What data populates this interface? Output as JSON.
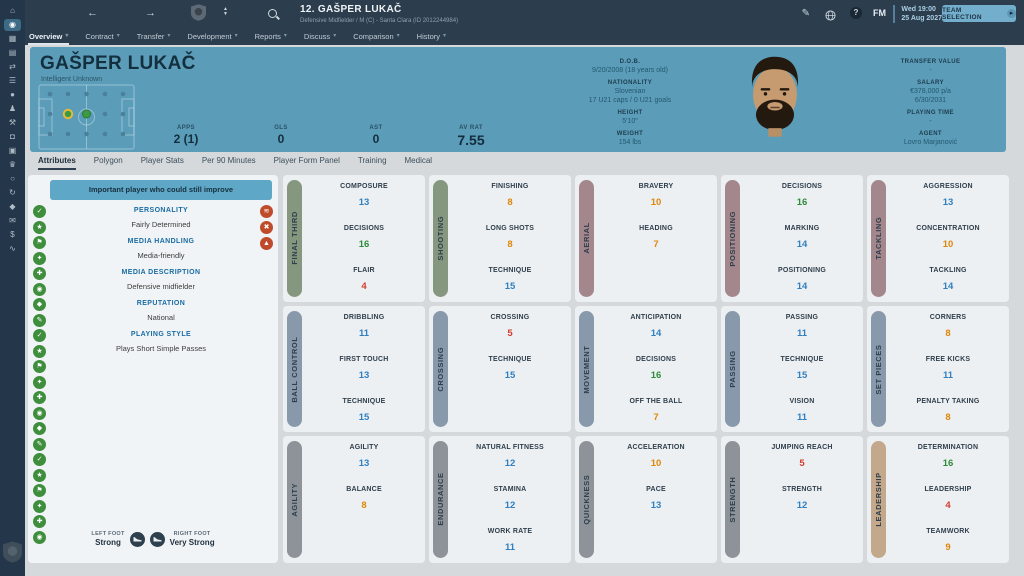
{
  "colors": {
    "topbar_bg": "#2c3d4e",
    "sidebar_bg": "#24374a",
    "header_bg": "#5b9cb9",
    "banner_bg": "#5fa7c6",
    "button_bg": "#74aecd",
    "page_bg": "#d5d9dc",
    "card_bg": "#edf0f2",
    "info_card_bg": "#f1f4f6"
  },
  "sidebar": {
    "icons": [
      {
        "name": "home",
        "glyph": "⌂"
      },
      {
        "name": "manager-profile",
        "glyph": "◉",
        "active": true
      },
      {
        "name": "squad",
        "glyph": "▦"
      },
      {
        "name": "tactics",
        "glyph": "▤"
      },
      {
        "name": "transfers",
        "glyph": "⇄"
      },
      {
        "name": "dynamics",
        "glyph": "☰"
      },
      {
        "name": "club-info",
        "glyph": "●"
      },
      {
        "name": "staff",
        "glyph": "♟"
      },
      {
        "name": "training",
        "glyph": "⚒"
      },
      {
        "name": "media",
        "glyph": "◘"
      },
      {
        "name": "schedule",
        "glyph": "▣"
      },
      {
        "name": "competitions",
        "glyph": "♛"
      },
      {
        "name": "search",
        "glyph": "○"
      },
      {
        "name": "history",
        "glyph": "↻"
      },
      {
        "name": "club-vision",
        "glyph": "◆"
      },
      {
        "name": "inbox",
        "glyph": "✉"
      },
      {
        "name": "finances",
        "glyph": "$"
      },
      {
        "name": "analytics",
        "glyph": "∿"
      }
    ]
  },
  "topbar": {
    "title": "12. GAŠPER LUKAČ",
    "subtitle": "Defensive Midfielder / M (C) - Santa Clara (ID 2012244984)",
    "fm_label": "FM",
    "help_label": "?",
    "clock_line1": "Wed 19:00",
    "clock_line2": "25 Aug 2027",
    "button_label": "TEAM SELECTION"
  },
  "menubar": {
    "items": [
      {
        "label": "Overview"
      },
      {
        "label": "Contract"
      },
      {
        "label": "Transfer"
      },
      {
        "label": "Development"
      },
      {
        "label": "Reports"
      },
      {
        "label": "Discuss"
      },
      {
        "label": "Comparison"
      },
      {
        "label": "History"
      }
    ]
  },
  "player_header": {
    "name": "GAŠPER LUKAČ",
    "traits": "Intelligent Unknown",
    "stats": [
      {
        "label": "APPS",
        "value": "2 (1)"
      },
      {
        "label": "GLS",
        "value": "0"
      },
      {
        "label": "AST",
        "value": "0"
      },
      {
        "label": "AV RAT",
        "value": "7.55"
      }
    ],
    "bio": {
      "dob_label": "D.O.B.",
      "dob": "9/20/2008 (18 years old)",
      "nat_label": "NATIONALITY",
      "nat1": "Slovenian",
      "nat2": "17 U21 caps / 0 U21 goals",
      "height_label": "HEIGHT",
      "height": "5'10\"",
      "weight_label": "WEIGHT",
      "weight": "154 lbs"
    },
    "contract": {
      "tv_label": "TRANSFER VALUE",
      "tv": "-",
      "salary_label": "SALARY",
      "salary": "€378,000 p/a",
      "salary_expiry": "6/30/2031",
      "pt_label": "PLAYING TIME",
      "pt": "-",
      "agent_label": "AGENT",
      "agent": "Lovro Marjanović"
    }
  },
  "view_tabs": {
    "items": [
      "Attributes",
      "Polygon",
      "Player Stats",
      "Per 90 Minutes",
      "Player Form Panel",
      "Training",
      "Medical"
    ],
    "active": "Attributes"
  },
  "info_panel": {
    "banner": "Important player who could still improve",
    "sections": [
      {
        "heading": "PERSONALITY",
        "value": "Fairly Determined"
      },
      {
        "heading": "MEDIA HANDLING",
        "value": "Media-friendly"
      },
      {
        "heading": "MEDIA DESCRIPTION",
        "value": "Defensive midfielder"
      },
      {
        "heading": "REPUTATION",
        "value": "National"
      },
      {
        "heading": "PLAYING STYLE",
        "value": "Plays Short Simple Passes"
      }
    ],
    "trait_icons": [
      "✓",
      "★",
      "⚑",
      "✦",
      "✚",
      "◉",
      "◆",
      "✎",
      "✓",
      "★",
      "⚑",
      "✦",
      "✚",
      "◉",
      "◆",
      "✎",
      "✓",
      "★",
      "⚑",
      "✦",
      "✚",
      "◉"
    ],
    "weakness_icons": [
      "≋",
      "✖",
      "▲"
    ]
  },
  "feet": {
    "left_label": "LEFT FOOT",
    "left_value": "Strong",
    "right_label": "RIGHT FOOT",
    "right_value": "Very Strong"
  },
  "attributes": {
    "palette": {
      "excellent": "#2e8b3a",
      "good": "#2f7fc1",
      "average": "#e0860a",
      "poor": "#d23b2e"
    },
    "pill_colors": {
      "green": "#85977f",
      "mauve": "#a3878c",
      "steel": "#8899ac",
      "gray": "#8d9399",
      "tan": "#c4a88c"
    },
    "groups": [
      {
        "label": "FINAL THIRD",
        "color": "green",
        "attrs": [
          {
            "name": "COMPOSURE",
            "value": 13
          },
          {
            "name": "DECISIONS",
            "value": 16
          },
          {
            "name": "FLAIR",
            "value": 4
          }
        ]
      },
      {
        "label": "SHOOTING",
        "color": "green",
        "attrs": [
          {
            "name": "FINISHING",
            "value": 8
          },
          {
            "name": "LONG SHOTS",
            "value": 8
          },
          {
            "name": "TECHNIQUE",
            "value": 15
          }
        ]
      },
      {
        "label": "AERIAL",
        "color": "mauve",
        "attrs": [
          {
            "name": "BRAVERY",
            "value": 10
          },
          {
            "name": "HEADING",
            "value": 7
          }
        ]
      },
      {
        "label": "POSITIONING",
        "color": "mauve",
        "attrs": [
          {
            "name": "DECISIONS",
            "value": 16
          },
          {
            "name": "MARKING",
            "value": 14
          },
          {
            "name": "POSITIONING",
            "value": 14
          }
        ]
      },
      {
        "label": "TACKLING",
        "color": "mauve",
        "attrs": [
          {
            "name": "AGGRESSION",
            "value": 13
          },
          {
            "name": "CONCENTRATION",
            "value": 10
          },
          {
            "name": "TACKLING",
            "value": 14
          }
        ]
      },
      {
        "label": "BALL CONTROL",
        "color": "steel",
        "attrs": [
          {
            "name": "DRIBBLING",
            "value": 11
          },
          {
            "name": "FIRST TOUCH",
            "value": 13
          },
          {
            "name": "TECHNIQUE",
            "value": 15
          }
        ]
      },
      {
        "label": "CROSSING",
        "color": "steel",
        "attrs": [
          {
            "name": "CROSSING",
            "value": 5
          },
          {
            "name": "TECHNIQUE",
            "value": 15
          }
        ]
      },
      {
        "label": "MOVEMENT",
        "color": "steel",
        "attrs": [
          {
            "name": "ANTICIPATION",
            "value": 14
          },
          {
            "name": "DECISIONS",
            "value": 16
          },
          {
            "name": "OFF THE BALL",
            "value": 7
          }
        ]
      },
      {
        "label": "PASSING",
        "color": "steel",
        "attrs": [
          {
            "name": "PASSING",
            "value": 11
          },
          {
            "name": "TECHNIQUE",
            "value": 15
          },
          {
            "name": "VISION",
            "value": 11
          }
        ]
      },
      {
        "label": "SET PIECES",
        "color": "steel",
        "attrs": [
          {
            "name": "CORNERS",
            "value": 8
          },
          {
            "name": "FREE KICKS",
            "value": 11
          },
          {
            "name": "PENALTY TAKING",
            "value": 8
          }
        ]
      },
      {
        "label": "AGILITY",
        "color": "gray",
        "attrs": [
          {
            "name": "AGILITY",
            "value": 13
          },
          {
            "name": "BALANCE",
            "value": 8
          }
        ]
      },
      {
        "label": "ENDURANCE",
        "color": "gray",
        "attrs": [
          {
            "name": "NATURAL FITNESS",
            "value": 12
          },
          {
            "name": "STAMINA",
            "value": 12
          },
          {
            "name": "WORK RATE",
            "value": 11
          }
        ]
      },
      {
        "label": "QUICKNESS",
        "color": "gray",
        "attrs": [
          {
            "name": "ACCELERATION",
            "value": 10
          },
          {
            "name": "PACE",
            "value": 13
          }
        ]
      },
      {
        "label": "STRENGTH",
        "color": "gray",
        "attrs": [
          {
            "name": "JUMPING REACH",
            "value": 5
          },
          {
            "name": "STRENGTH",
            "value": 12
          }
        ]
      },
      {
        "label": "LEADERSHIP",
        "color": "tan",
        "attrs": [
          {
            "name": "DETERMINATION",
            "value": 16
          },
          {
            "name": "LEADERSHIP",
            "value": 4
          },
          {
            "name": "TEAMWORK",
            "value": 9
          }
        ]
      }
    ]
  }
}
